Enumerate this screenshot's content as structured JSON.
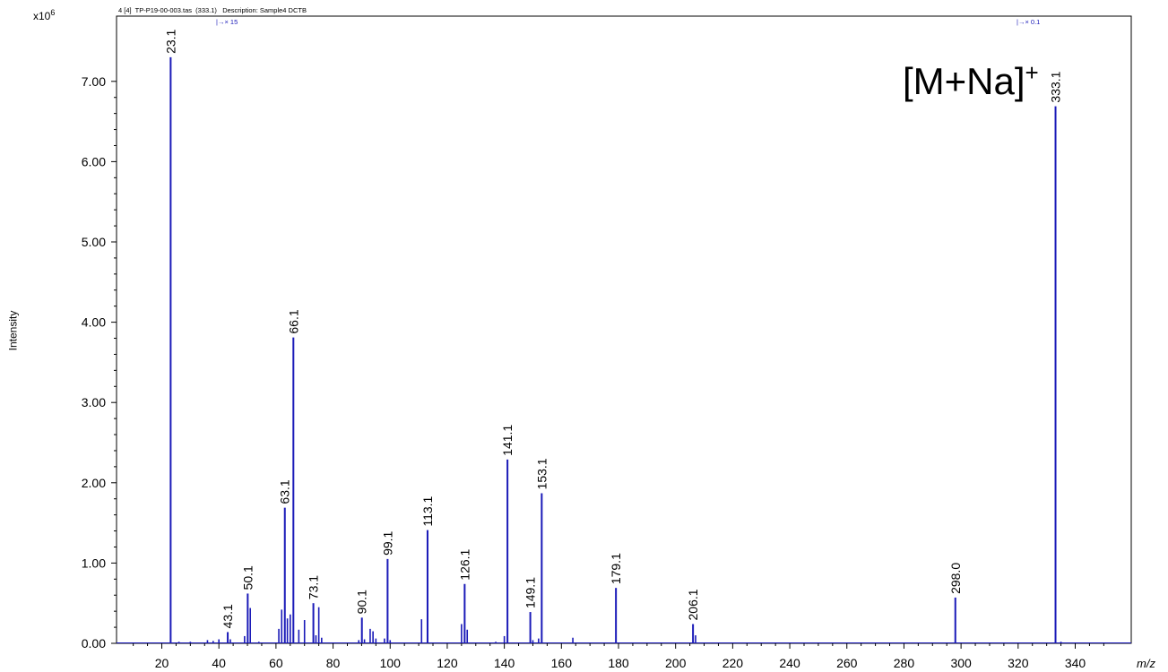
{
  "header": {
    "file_info": "4 [4]  TP-P19-00-003.tas  (333.1)",
    "description": "Description: Sample4 DCTB",
    "zoom_left": "|→× 15",
    "zoom_right": "|→× 0.1"
  },
  "annotation": {
    "text": "[M+Na]",
    "sup": "+"
  },
  "colors": {
    "peaks": "#1a1ab8",
    "axis": "#000000"
  },
  "chart_data": {
    "type": "bar",
    "y_exponent_base": "x10",
    "y_exponent_power": "6",
    "ylabel": "Intensity",
    "xlabel": "m/z",
    "xlim": [
      5,
      355
    ],
    "ylim": [
      0,
      7.8
    ],
    "xticks": [
      20,
      40,
      60,
      80,
      100,
      120,
      140,
      160,
      180,
      200,
      220,
      240,
      260,
      280,
      300,
      320,
      340
    ],
    "yticks": [
      "0.00",
      "1.00",
      "2.00",
      "3.00",
      "4.00",
      "5.00",
      "6.00",
      "7.00"
    ],
    "labeled_peaks": [
      {
        "mz": 23.1,
        "label": "23.1",
        "intensity": 7.3
      },
      {
        "mz": 43.1,
        "label": "43.1",
        "intensity": 0.14
      },
      {
        "mz": 50.1,
        "label": "50.1",
        "intensity": 0.62
      },
      {
        "mz": 63.1,
        "label": "63.1",
        "intensity": 1.69
      },
      {
        "mz": 66.1,
        "label": "66.1",
        "intensity": 3.81
      },
      {
        "mz": 73.1,
        "label": "73.1",
        "intensity": 0.5
      },
      {
        "mz": 90.1,
        "label": "90.1",
        "intensity": 0.32
      },
      {
        "mz": 99.1,
        "label": "99.1",
        "intensity": 1.05
      },
      {
        "mz": 113.1,
        "label": "113.1",
        "intensity": 1.41
      },
      {
        "mz": 126.1,
        "label": "126.1",
        "intensity": 0.74
      },
      {
        "mz": 141.1,
        "label": "141.1",
        "intensity": 2.29
      },
      {
        "mz": 149.1,
        "label": "149.1",
        "intensity": 0.39
      },
      {
        "mz": 153.1,
        "label": "153.1",
        "intensity": 1.87
      },
      {
        "mz": 179.1,
        "label": "179.1",
        "intensity": 0.69
      },
      {
        "mz": 206.1,
        "label": "206.1",
        "intensity": 0.24
      },
      {
        "mz": 298.0,
        "label": "298.0",
        "intensity": 0.57
      },
      {
        "mz": 333.1,
        "label": "333.1",
        "intensity": 6.69
      }
    ],
    "minor_peaks": [
      {
        "mz": 26.0,
        "intensity": 0.02
      },
      {
        "mz": 30.0,
        "intensity": 0.02
      },
      {
        "mz": 36.0,
        "intensity": 0.04
      },
      {
        "mz": 38.0,
        "intensity": 0.03
      },
      {
        "mz": 40.0,
        "intensity": 0.05
      },
      {
        "mz": 44.0,
        "intensity": 0.05
      },
      {
        "mz": 49.0,
        "intensity": 0.09
      },
      {
        "mz": 51.0,
        "intensity": 0.44
      },
      {
        "mz": 54.0,
        "intensity": 0.02
      },
      {
        "mz": 61.0,
        "intensity": 0.18
      },
      {
        "mz": 62.0,
        "intensity": 0.42
      },
      {
        "mz": 64.0,
        "intensity": 0.31
      },
      {
        "mz": 65.0,
        "intensity": 0.36
      },
      {
        "mz": 68.0,
        "intensity": 0.17
      },
      {
        "mz": 70.0,
        "intensity": 0.29
      },
      {
        "mz": 74.0,
        "intensity": 0.1
      },
      {
        "mz": 75.0,
        "intensity": 0.45
      },
      {
        "mz": 76.0,
        "intensity": 0.07
      },
      {
        "mz": 89.0,
        "intensity": 0.04
      },
      {
        "mz": 91.0,
        "intensity": 0.05
      },
      {
        "mz": 93.0,
        "intensity": 0.18
      },
      {
        "mz": 94.0,
        "intensity": 0.15
      },
      {
        "mz": 95.0,
        "intensity": 0.06
      },
      {
        "mz": 98.0,
        "intensity": 0.06
      },
      {
        "mz": 100.0,
        "intensity": 0.04
      },
      {
        "mz": 111.0,
        "intensity": 0.3
      },
      {
        "mz": 125.0,
        "intensity": 0.24
      },
      {
        "mz": 127.0,
        "intensity": 0.17
      },
      {
        "mz": 137.0,
        "intensity": 0.02
      },
      {
        "mz": 140.0,
        "intensity": 0.09
      },
      {
        "mz": 150.0,
        "intensity": 0.04
      },
      {
        "mz": 152.0,
        "intensity": 0.06
      },
      {
        "mz": 164.0,
        "intensity": 0.07
      },
      {
        "mz": 207.0,
        "intensity": 0.1
      },
      {
        "mz": 335.0,
        "intensity": 0.02
      }
    ]
  }
}
